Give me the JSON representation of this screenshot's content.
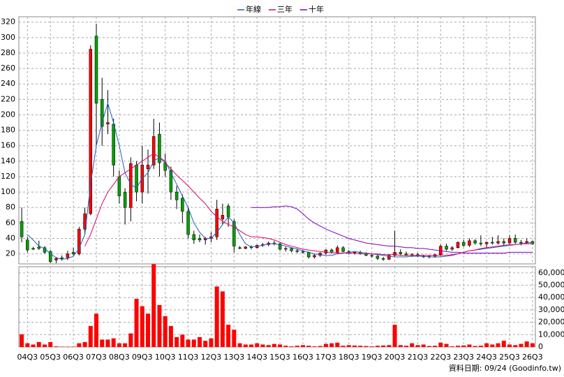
{
  "chart_data": [
    {
      "type": "candlestick",
      "categories": [
        null,
        "04Q3",
        null,
        null,
        null,
        "05Q3",
        null,
        null,
        null,
        "06Q3",
        null,
        null,
        null,
        "07Q3",
        null,
        null,
        null,
        "08Q3",
        null,
        null,
        null,
        "09Q3",
        null,
        null,
        null,
        "10Q3",
        null,
        null,
        null,
        "11Q3",
        null,
        null,
        null,
        "12Q3",
        null,
        null,
        null,
        "13Q3",
        null,
        null,
        null,
        "14Q3",
        null,
        null,
        null,
        "15Q3",
        null,
        null,
        null,
        "16Q3",
        null,
        null,
        null,
        "17Q3",
        null,
        null,
        null,
        "18Q3",
        null,
        null,
        null,
        "19Q3",
        null,
        null,
        null,
        "20Q3",
        null,
        null,
        null,
        "21Q3",
        null,
        null,
        null,
        "22Q3",
        null,
        null,
        null,
        "23Q3",
        null,
        null,
        null,
        "24Q3",
        null,
        null,
        null,
        "25Q3",
        null,
        null,
        null,
        "26Q3"
      ],
      "open": [
        62,
        38,
        27,
        29,
        28,
        23,
        12,
        15,
        15,
        22,
        20,
        52,
        72,
        302,
        220,
        188,
        188,
        120,
        100,
        80,
        135,
        100,
        130,
        135,
        175,
        138,
        128,
        100,
        92,
        75,
        45,
        40,
        38,
        40,
        42,
        65,
        82,
        62,
        28,
        27,
        29,
        28,
        31,
        32,
        34,
        33,
        26,
        27,
        24,
        23,
        22,
        16,
        18,
        21,
        25,
        22,
        28,
        23,
        21,
        22,
        20,
        18,
        17,
        14,
        13,
        18,
        22,
        20,
        18,
        19,
        17,
        16,
        17,
        19,
        30,
        26,
        28,
        35,
        31,
        37,
        34,
        33,
        35,
        34,
        36,
        34,
        40,
        35,
        34,
        36
      ],
      "high": [
        80,
        42,
        29,
        37,
        30,
        25,
        16,
        18,
        24,
        28,
        55,
        80,
        290,
        318,
        248,
        232,
        195,
        128,
        105,
        145,
        140,
        160,
        155,
        195,
        190,
        150,
        133,
        108,
        97,
        80,
        50,
        45,
        42,
        48,
        90,
        85,
        85,
        65,
        30,
        30,
        31,
        32,
        34,
        36,
        37,
        35,
        29,
        28,
        27,
        25,
        23,
        20,
        22,
        26,
        27,
        31,
        30,
        25,
        23,
        24,
        22,
        20,
        19,
        16,
        19,
        50,
        26,
        23,
        21,
        21,
        19,
        18,
        20,
        32,
        33,
        30,
        36,
        38,
        40,
        39,
        44,
        36,
        42,
        44,
        40,
        44,
        45,
        38,
        40,
        37
      ],
      "low": [
        35,
        22,
        25,
        25,
        20,
        8,
        8,
        11,
        12,
        18,
        18,
        45,
        70,
        160,
        160,
        175,
        120,
        85,
        58,
        62,
        88,
        85,
        98,
        130,
        120,
        120,
        90,
        78,
        60,
        40,
        33,
        35,
        32,
        35,
        38,
        58,
        55,
        22,
        26,
        26,
        26,
        27,
        29,
        30,
        31,
        24,
        23,
        22,
        21,
        20,
        14,
        14,
        16,
        19,
        20,
        21,
        22,
        19,
        19,
        19,
        17,
        15,
        12,
        11,
        12,
        16,
        18,
        17,
        16,
        16,
        15,
        14,
        15,
        18,
        24,
        24,
        27,
        29,
        29,
        32,
        30,
        28,
        32,
        32,
        31,
        33,
        33,
        31,
        33,
        32
      ],
      "close": [
        42,
        25,
        26,
        27,
        22,
        10,
        14,
        14,
        20,
        20,
        52,
        72,
        285,
        215,
        185,
        190,
        135,
        95,
        80,
        137,
        100,
        135,
        135,
        172,
        138,
        128,
        100,
        90,
        75,
        45,
        38,
        38,
        40,
        42,
        78,
        70,
        68,
        30,
        27,
        29,
        28,
        31,
        32,
        34,
        33,
        26,
        27,
        24,
        23,
        22,
        16,
        18,
        21,
        25,
        22,
        28,
        23,
        21,
        22,
        20,
        18,
        17,
        14,
        13,
        18,
        22,
        20,
        18,
        19,
        17,
        16,
        17,
        19,
        30,
        26,
        28,
        35,
        31,
        37,
        34,
        33,
        35,
        34,
        36,
        34,
        40,
        35,
        34,
        36,
        33
      ],
      "up_color": "#ff0000",
      "down_color": "#00a000",
      "series": [
        {
          "name": "年線",
          "color": "#1f5fbf",
          "values": [
            null,
            45,
            38,
            30,
            27,
            20,
            15,
            13,
            14,
            17,
            27,
            45,
            110,
            160,
            190,
            215,
            190,
            160,
            125,
            110,
            105,
            118,
            125,
            140,
            145,
            140,
            125,
            110,
            95,
            80,
            60,
            48,
            40,
            40,
            48,
            58,
            68,
            60,
            45,
            33,
            29,
            30,
            31,
            33,
            33,
            32,
            30,
            28,
            26,
            24,
            22,
            20,
            19,
            18,
            18,
            20,
            21,
            22,
            23,
            22,
            21,
            20,
            19,
            18,
            17,
            16,
            16,
            16,
            17,
            17,
            17,
            16,
            16,
            16,
            17,
            18,
            20,
            22,
            24,
            25,
            26,
            27,
            28,
            29,
            30,
            31,
            32,
            33,
            34,
            35
          ]
        },
        {
          "name": "三年",
          "color": "#e0006a",
          "values": [
            null,
            null,
            null,
            null,
            null,
            null,
            null,
            null,
            null,
            null,
            null,
            30,
            45,
            65,
            85,
            100,
            110,
            120,
            125,
            130,
            135,
            140,
            145,
            150,
            145,
            138,
            130,
            122,
            115,
            108,
            100,
            92,
            85,
            75,
            68,
            62,
            58,
            55,
            50,
            45,
            42,
            42,
            41,
            40,
            38,
            35,
            32,
            30,
            28,
            26,
            25,
            24,
            23,
            22,
            22,
            21,
            21,
            21,
            21,
            20,
            20,
            20,
            20,
            19,
            19,
            19,
            18,
            18,
            18,
            18,
            18,
            18,
            18,
            18,
            18,
            19,
            20,
            22,
            24,
            25,
            27,
            28,
            29,
            30,
            31,
            32,
            32,
            33,
            33,
            33
          ]
        },
        {
          "name": "十年",
          "color": "#8000c0",
          "values": [
            null,
            null,
            null,
            null,
            null,
            null,
            null,
            null,
            null,
            null,
            null,
            null,
            null,
            null,
            null,
            null,
            null,
            null,
            null,
            null,
            null,
            null,
            null,
            null,
            null,
            null,
            null,
            null,
            null,
            null,
            null,
            null,
            null,
            null,
            null,
            null,
            null,
            null,
            null,
            null,
            80,
            80,
            80,
            80,
            81,
            81,
            82,
            81,
            78,
            72,
            65,
            60,
            56,
            52,
            49,
            46,
            43,
            40,
            38,
            36,
            34,
            33,
            32,
            31,
            30,
            30,
            29,
            28,
            28,
            27,
            27,
            26,
            25,
            24,
            23,
            22,
            22,
            21,
            21,
            21,
            21,
            21,
            21,
            21,
            21,
            22,
            22,
            22,
            22,
            22
          ]
        }
      ],
      "ylim": [
        7,
        327
      ],
      "yticks": [
        20,
        40,
        60,
        80,
        100,
        120,
        140,
        160,
        180,
        200,
        220,
        240,
        260,
        280,
        300,
        320
      ],
      "grid": true,
      "caption": "資料日期: 09/24  (Goodinfo.tw)"
    },
    {
      "type": "bar",
      "color": "#ff0000",
      "values": [
        10300,
        3000,
        2000,
        4000,
        2000,
        4000,
        500,
        300,
        300,
        300,
        3000,
        4000,
        17000,
        27000,
        6000,
        6000,
        7000,
        3000,
        3000,
        11000,
        39000,
        33000,
        27000,
        67000,
        34000,
        25000,
        17000,
        8000,
        10000,
        6000,
        6000,
        8000,
        5000,
        7000,
        49000,
        45000,
        18000,
        14000,
        3000,
        2000,
        2000,
        3000,
        2000,
        1500,
        2500,
        2000,
        1000,
        500,
        1000,
        1500,
        1000,
        500,
        800,
        2500,
        3000,
        3500,
        1000,
        1500,
        1200,
        1000,
        800,
        500,
        1000,
        1200,
        1500,
        18000,
        1500,
        1000,
        3000,
        1500,
        2000,
        800,
        1000,
        3500,
        2500,
        500,
        1000,
        1200,
        2000,
        800,
        1000,
        3000,
        2000,
        3000,
        5000,
        2000,
        1500,
        2500,
        4500,
        3000
      ],
      "ylim": [
        0,
        65000
      ],
      "yticks": [
        0,
        {
          "value": 10000,
          "label": "10,000"
        },
        {
          "value": 20000,
          "label": "20,000"
        },
        {
          "value": 30000,
          "label": "30,000"
        },
        {
          "value": 40000,
          "label": "40,000"
        },
        {
          "value": 50000,
          "label": "50,000"
        },
        {
          "value": 60000,
          "label": "60,000"
        }
      ],
      "grid": true
    }
  ]
}
